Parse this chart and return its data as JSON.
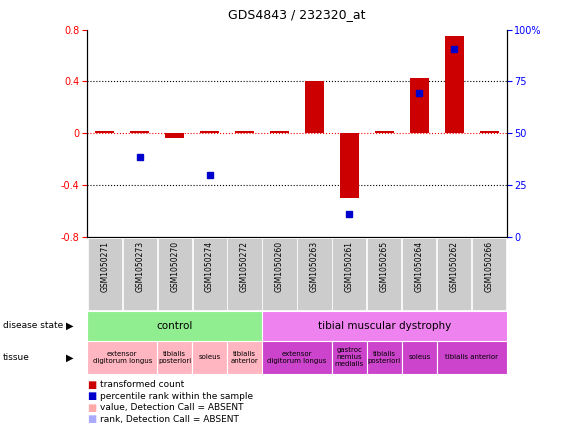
{
  "title": "GDS4843 / 232320_at",
  "samples": [
    "GSM1050271",
    "GSM1050273",
    "GSM1050270",
    "GSM1050274",
    "GSM1050272",
    "GSM1050260",
    "GSM1050263",
    "GSM1050261",
    "GSM1050265",
    "GSM1050264",
    "GSM1050262",
    "GSM1050266"
  ],
  "red_bars": [
    0.02,
    0.02,
    -0.04,
    0.02,
    0.02,
    0.02,
    0.4,
    -0.5,
    0.02,
    0.43,
    0.75,
    0.02
  ],
  "blue_dots": [
    null,
    -0.18,
    null,
    -0.32,
    null,
    null,
    null,
    -0.62,
    null,
    0.31,
    0.65,
    null
  ],
  "ylim_left": [
    -0.8,
    0.8
  ],
  "ylim_right": [
    0,
    100
  ],
  "yticks_left": [
    -0.8,
    -0.4,
    0.0,
    0.4,
    0.8
  ],
  "yticks_right": [
    0,
    25,
    50,
    75,
    100
  ],
  "ytick_labels_left": [
    "-0.8",
    "-0.4",
    "0",
    "0.4",
    "0.8"
  ],
  "ytick_labels_right": [
    "0",
    "25",
    "50",
    "75",
    "100%"
  ],
  "hlines_dotted": [
    -0.4,
    0.4
  ],
  "disease_groups": [
    {
      "label": "control",
      "start": 0,
      "end": 5,
      "color": "#90ee90"
    },
    {
      "label": "tibial muscular dystrophy",
      "start": 5,
      "end": 12,
      "color": "#ee82ee"
    }
  ],
  "tissue_groups": [
    {
      "label": "extensor\ndigitorum longus",
      "start": 0,
      "end": 2,
      "color": "#ffb6c1"
    },
    {
      "label": "tibialis\nposteriori",
      "start": 2,
      "end": 3,
      "color": "#ffb6c1"
    },
    {
      "label": "soleus",
      "start": 3,
      "end": 4,
      "color": "#ffb6c1"
    },
    {
      "label": "tibialis\nanterior",
      "start": 4,
      "end": 5,
      "color": "#ffb6c1"
    },
    {
      "label": "extensor\ndigitorum longus",
      "start": 5,
      "end": 7,
      "color": "#cc44cc"
    },
    {
      "label": "gastroc\nnemius\nmedialis",
      "start": 7,
      "end": 8,
      "color": "#cc44cc"
    },
    {
      "label": "tibialis\nposteriori",
      "start": 8,
      "end": 9,
      "color": "#cc44cc"
    },
    {
      "label": "soleus",
      "start": 9,
      "end": 10,
      "color": "#cc44cc"
    },
    {
      "label": "tibialis anterior",
      "start": 10,
      "end": 12,
      "color": "#cc44cc"
    }
  ],
  "bar_color": "#cc0000",
  "dot_color": "#0000cc",
  "absent_bar_color": "#ffaaaa",
  "absent_dot_color": "#aaaaff",
  "legend_items": [
    {
      "color": "#cc0000",
      "label": "transformed count"
    },
    {
      "color": "#0000cc",
      "label": "percentile rank within the sample"
    },
    {
      "color": "#ffaaaa",
      "label": "value, Detection Call = ABSENT"
    },
    {
      "color": "#aaaaff",
      "label": "rank, Detection Call = ABSENT"
    }
  ],
  "sample_box_color": "#cccccc",
  "border_color": "#000000"
}
